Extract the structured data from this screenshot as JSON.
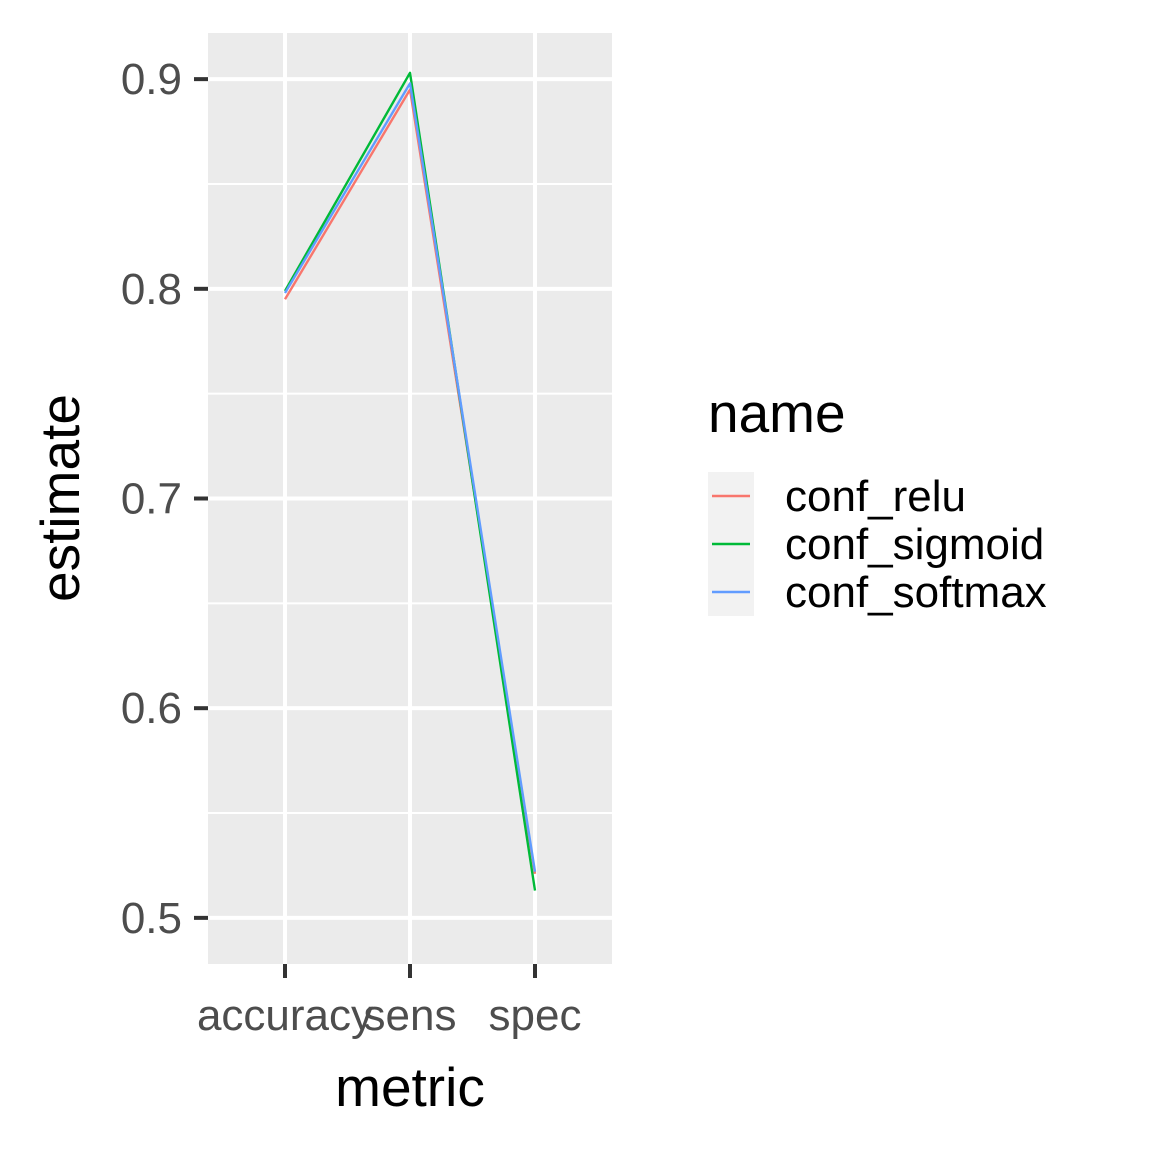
{
  "chart_data": {
    "type": "line",
    "xlabel": "metric",
    "ylabel": "estimate",
    "categories": [
      "accuracy",
      "sens",
      "spec"
    ],
    "ylim": [
      0.478,
      0.922
    ],
    "yticks": [
      0.5,
      0.6,
      0.7,
      0.8,
      0.9
    ],
    "ytick_labels": [
      "0.5",
      "0.6",
      "0.7",
      "0.8",
      "0.9"
    ],
    "grid": true,
    "legend": {
      "title": "name",
      "position": "right"
    },
    "series": [
      {
        "name": "conf_relu",
        "color": "#F8766D",
        "values": [
          0.795,
          0.895,
          0.521
        ]
      },
      {
        "name": "conf_sigmoid",
        "color": "#00BA38",
        "values": [
          0.799,
          0.903,
          0.513
        ]
      },
      {
        "name": "conf_softmax",
        "color": "#619CFF",
        "values": [
          0.798,
          0.898,
          0.522
        ]
      }
    ]
  }
}
